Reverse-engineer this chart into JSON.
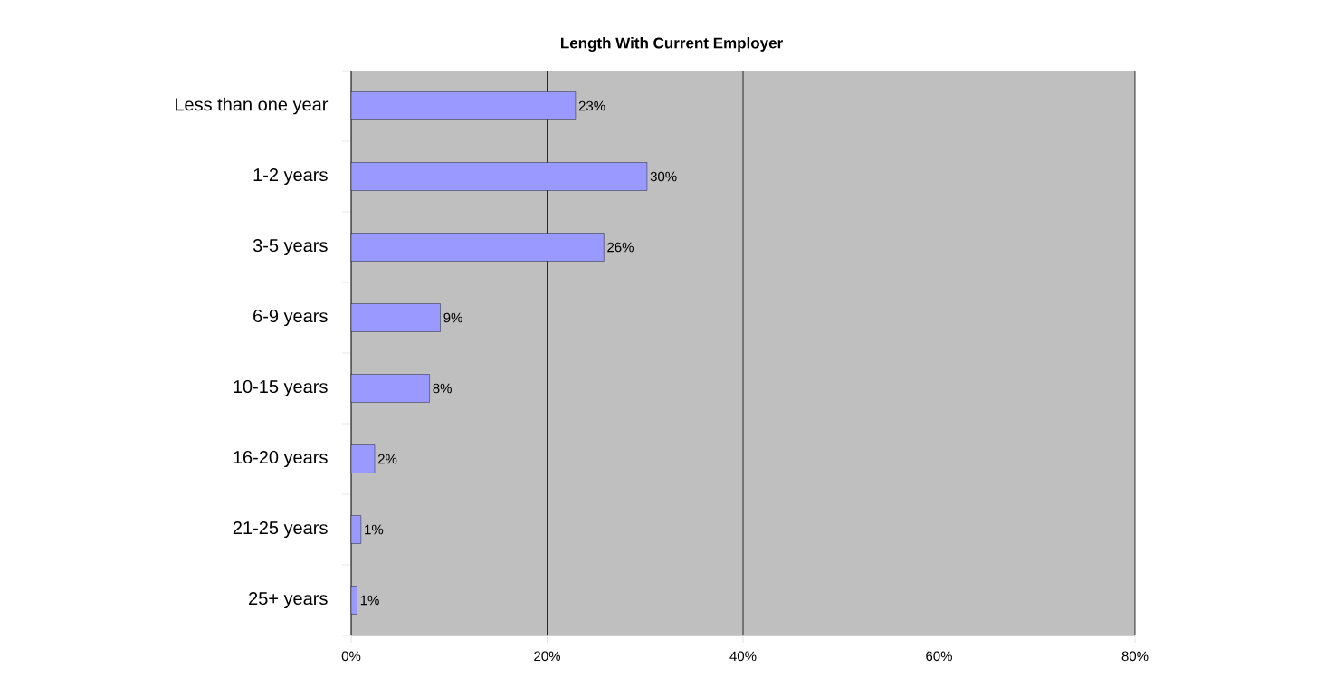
{
  "chart_data": {
    "type": "bar",
    "orientation": "horizontal",
    "title": "Length With Current Employer",
    "categories": [
      "Less than one year",
      "1-2 years",
      "3-5 years",
      "6-9 years",
      "10-15 years",
      "16-20 years",
      "21-25 years",
      "25+ years"
    ],
    "values": [
      22.9,
      30.2,
      25.8,
      9.1,
      8.0,
      2.4,
      1.0,
      0.6
    ],
    "value_labels": [
      "23%",
      "30%",
      "26%",
      "9%",
      "8%",
      "2%",
      "1%",
      "1%"
    ],
    "color": "#9999ff",
    "xlim": [
      0,
      80
    ],
    "xticks": [
      {
        "value": 0,
        "label": "0%"
      },
      {
        "value": 20,
        "label": "20%"
      },
      {
        "value": 40,
        "label": "40%"
      },
      {
        "value": 60,
        "label": "60%"
      },
      {
        "value": 80,
        "label": "80%"
      }
    ],
    "grid": "x"
  }
}
